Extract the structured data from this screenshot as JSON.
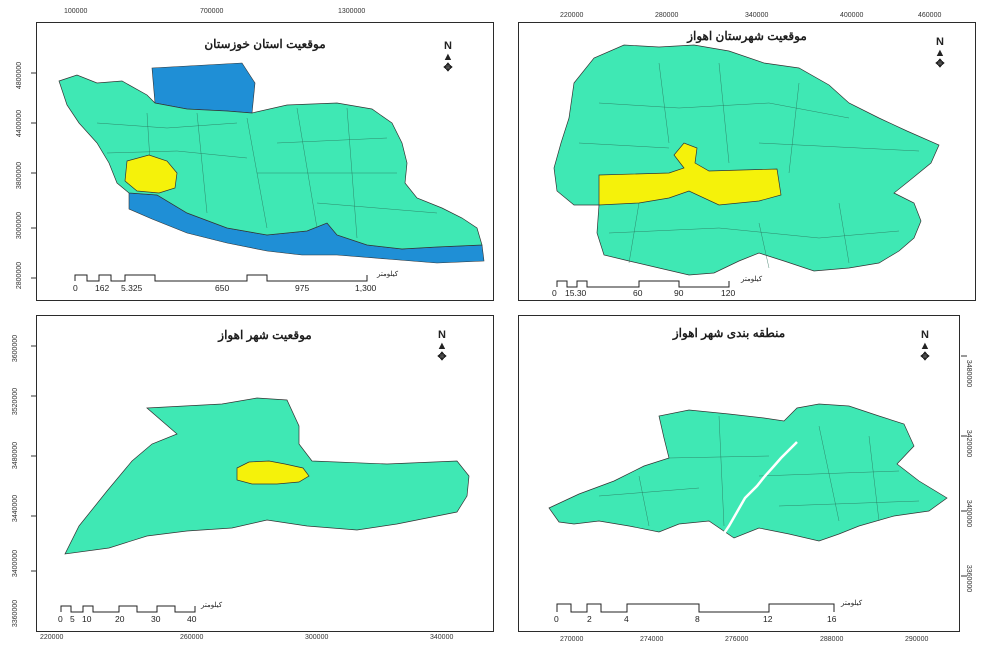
{
  "colors": {
    "land": "#3fe8b4",
    "water": "#1f8fd6",
    "highlight": "#f5f20a",
    "frame": "#2b2b2b",
    "river": "#ffffff"
  },
  "icons": {
    "north_arrow": "north-arrow-icon"
  },
  "panels": [
    {
      "id": "khuzestan",
      "title": "موقعیت استان خوزستان",
      "top_ticks": [
        "100000",
        "700000",
        "1300000"
      ],
      "left_ticks": [
        "4800000",
        "4400000",
        "3800000",
        "3000000",
        "2800000"
      ],
      "scale": {
        "labels": [
          "0",
          "162",
          "5.325",
          "650",
          "975",
          "1,300"
        ],
        "unit": "کیلومتر"
      }
    },
    {
      "id": "ahvaz-county",
      "title": "موقعیت شهرستان اهواز",
      "top_ticks": [
        "220000",
        "280000",
        "340000",
        "400000",
        "460000"
      ],
      "left_ticks": [
        "",
        "",
        "",
        ""
      ],
      "scale": {
        "labels": [
          "0",
          "15.30",
          "60",
          "90",
          "120"
        ],
        "unit": "کیلومتر"
      }
    },
    {
      "id": "ahvaz-city",
      "title": "موقعیت شهر اهواز",
      "bottom_ticks": [
        "220000",
        "260000",
        "300000",
        "340000"
      ],
      "left_ticks": [
        "3600000",
        "3520000",
        "3480000",
        "3440000",
        "3400000",
        "3360000"
      ],
      "scale": {
        "labels": [
          "0",
          "5",
          "10",
          "20",
          "30",
          "40"
        ],
        "unit": "کیلومتر"
      }
    },
    {
      "id": "ahvaz-zones",
      "title": "منطقه بندی شهر اهواز",
      "bottom_ticks": [
        "270000",
        "274000",
        "276000",
        "288000",
        "290000"
      ],
      "right_ticks": [
        "3480000",
        "3420000",
        "3400000",
        "3360000"
      ],
      "scale": {
        "labels": [
          "0",
          "2",
          "4",
          "8",
          "12",
          "16"
        ],
        "unit": "کیلومتر"
      }
    }
  ]
}
